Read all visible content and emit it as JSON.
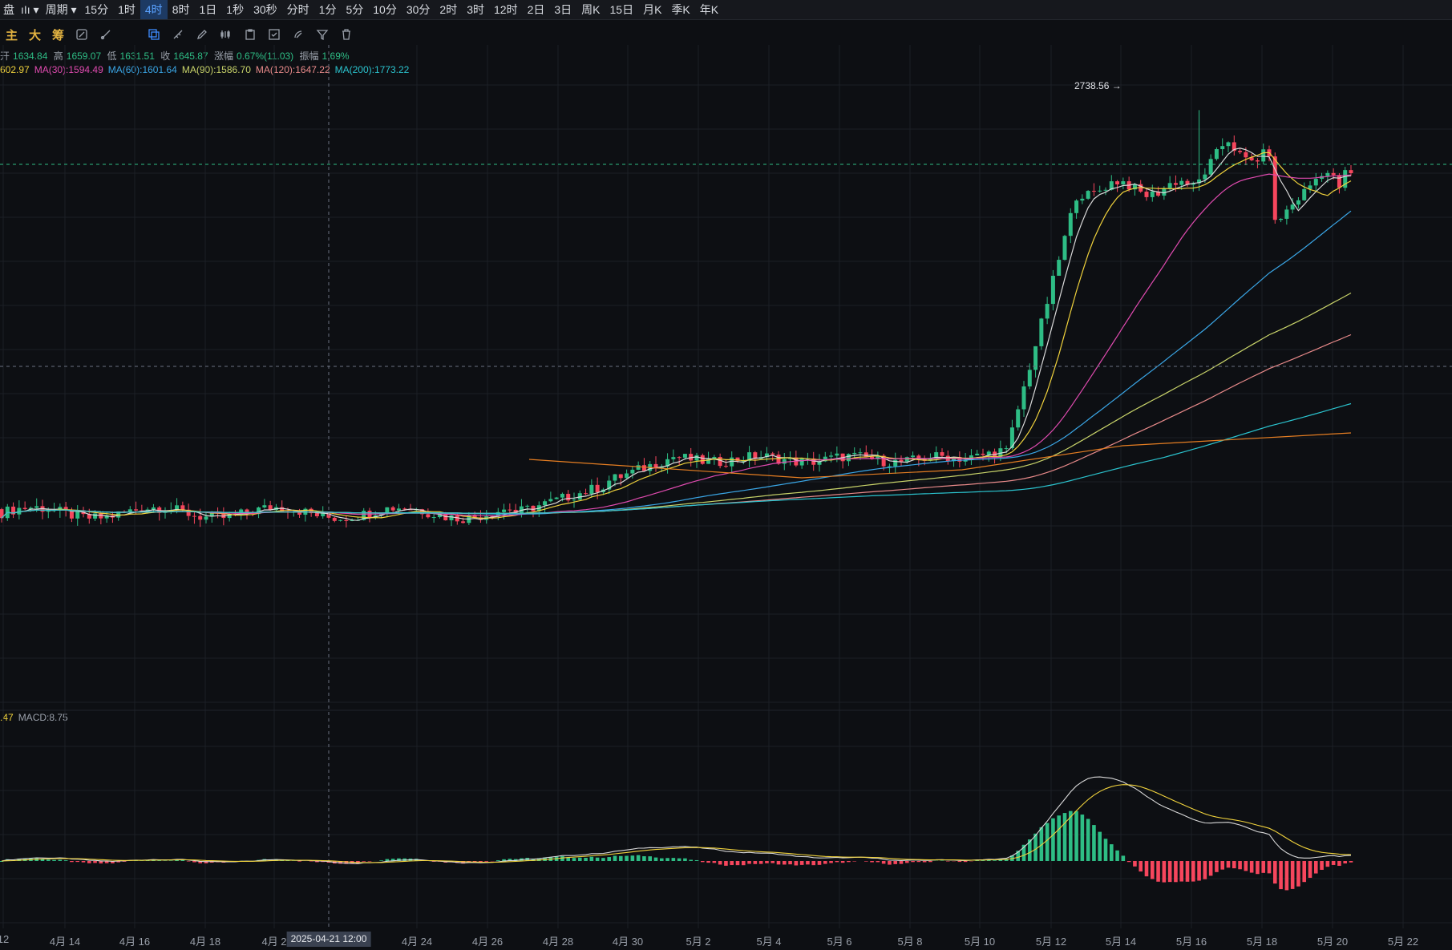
{
  "topbar": {
    "left_label": "盘",
    "chart_style_label": "ıIı",
    "period_label": "周期",
    "intervals": [
      "15分",
      "1时",
      "4时",
      "8时",
      "1日",
      "1秒",
      "30秒",
      "分时",
      "1分",
      "5分",
      "10分",
      "30分",
      "2时",
      "3时",
      "12时",
      "2日",
      "3日",
      "周K",
      "15日",
      "月K",
      "季K",
      "年K"
    ],
    "active_interval": "4时"
  },
  "toolbar": {
    "indicators": [
      "主",
      "大",
      "筹"
    ],
    "tool_icons": [
      "draw-tools-icon",
      "brush-icon",
      "magnet-icon",
      "trash-alt-icon",
      "select-icon",
      "ruler-icon",
      "pen-icon",
      "candle-compare-icon",
      "clipboard-icon",
      "note-icon",
      "marker-icon",
      "filter-icon",
      "delete-icon"
    ]
  },
  "ohlc": {
    "open_label": "开",
    "open": "1634.84",
    "high_label": "高",
    "high": "1659.07",
    "low_label": "低",
    "low": "1631.51",
    "close_label": "收",
    "close": "1645.87",
    "change_label": "涨幅",
    "change": "0.67%(11.03)",
    "amplitude_label": "振幅",
    "amplitude": "1.69%"
  },
  "ma_legend": [
    {
      "text": "602.97",
      "color": "#f0d23c"
    },
    {
      "text": "MA(30):1594.49",
      "color": "#e04bb0"
    },
    {
      "text": "MA(60):1601.64",
      "color": "#3aa6e6"
    },
    {
      "text": "MA(90):1586.70",
      "color": "#c9d46a"
    },
    {
      "text": "MA(120):1647.22",
      "color": "#e88a8a"
    },
    {
      "text": "MA(200):1773.22",
      "color": "#2bc4cf"
    }
  ],
  "macd_legend": [
    {
      "text": ".47",
      "color": "#f0d23c"
    },
    {
      "text": "MACD:8.75",
      "color": "#9aa0aa"
    }
  ],
  "high_marker": "2738.56",
  "crosshair_time": "2025-04-21 12:00",
  "x_axis_labels": [
    "12",
    "4月 14",
    "4月 16",
    "4月 18",
    "4月 2",
    "4月 24",
    "4月 26",
    "4月 28",
    "4月 30",
    "5月 2",
    "5月 4",
    "5月 6",
    "5月 8",
    "5月 10",
    "5月 12",
    "5月 14",
    "5月 16",
    "5月 18",
    "5月 20",
    "5月 22"
  ],
  "colors": {
    "up": "#2ebd85",
    "down": "#f6465d",
    "bg": "#0d0f13",
    "grid": "#1c1f26"
  },
  "chart_data": {
    "type": "candlestick",
    "interval": "4时",
    "price_high_marker": 2738.56,
    "series_lines": [
      "MA(5)",
      "MA(10)",
      "MA(30)",
      "MA(60)",
      "MA(90)",
      "MA(120)",
      "MA(200)"
    ],
    "macd": {
      "macd": 8.75
    }
  }
}
